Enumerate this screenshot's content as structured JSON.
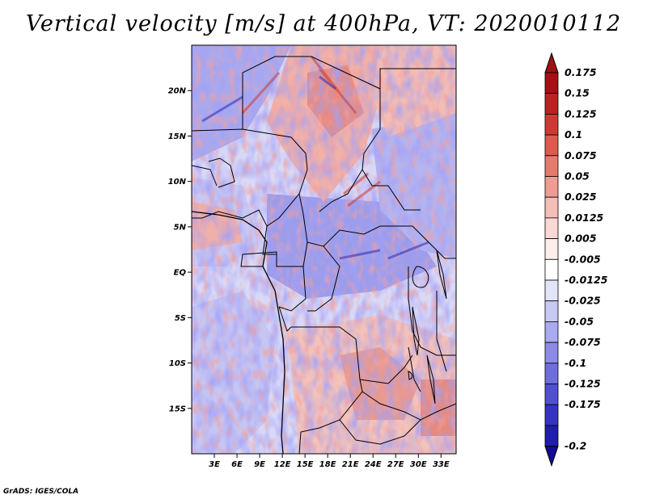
{
  "title": "Vertical velocity [m/s] at 400hPa, VT: 2020010112",
  "footer": "GrADS: IGES/COLA",
  "map": {
    "lon_range": [
      0,
      35
    ],
    "lat_range": [
      -20,
      25
    ],
    "lat_ticks": [
      {
        "value": 20,
        "label": "20N"
      },
      {
        "value": 15,
        "label": "15N"
      },
      {
        "value": 10,
        "label": "10N"
      },
      {
        "value": 5,
        "label": "5N"
      },
      {
        "value": 0,
        "label": "EQ"
      },
      {
        "value": -5,
        "label": "5S"
      },
      {
        "value": -10,
        "label": "10S"
      },
      {
        "value": -15,
        "label": "15S"
      }
    ],
    "lon_ticks": [
      {
        "value": 3,
        "label": "3E"
      },
      {
        "value": 6,
        "label": "6E"
      },
      {
        "value": 9,
        "label": "9E"
      },
      {
        "value": 12,
        "label": "12E"
      },
      {
        "value": 15,
        "label": "15E"
      },
      {
        "value": 18,
        "label": "18E"
      },
      {
        "value": 21,
        "label": "21E"
      },
      {
        "value": 24,
        "label": "24E"
      },
      {
        "value": 27,
        "label": "27E"
      },
      {
        "value": 30,
        "label": "30E"
      },
      {
        "value": 33,
        "label": "33E"
      }
    ]
  },
  "colorbar": {
    "levels": [
      {
        "label": "0.175",
        "color": "#a50f15"
      },
      {
        "label": "0.15",
        "color": "#bb2323"
      },
      {
        "label": "0.125",
        "color": "#cc3a34"
      },
      {
        "label": "0.1",
        "color": "#dc5a4e"
      },
      {
        "label": "0.075",
        "color": "#e57b6f"
      },
      {
        "label": "0.05",
        "color": "#ee9d93"
      },
      {
        "label": "0.025",
        "color": "#f5bdb6"
      },
      {
        "label": "0.0125",
        "color": "#fad8d3"
      },
      {
        "label": "0.005",
        "color": "#fdeeec"
      },
      {
        "label": "-0.005",
        "color": "#ffffff"
      },
      {
        "label": "-0.0125",
        "color": "#e4e4fb"
      },
      {
        "label": "-0.025",
        "color": "#c8c8f5"
      },
      {
        "label": "-0.05",
        "color": "#aaaaf0"
      },
      {
        "label": "-0.075",
        "color": "#8c8ce8"
      },
      {
        "label": "-0.1",
        "color": "#6e6ede"
      },
      {
        "label": "-0.125",
        "color": "#5050d0"
      },
      {
        "label": "-0.175",
        "color": "#3434bf"
      },
      {
        "label": "-0.2",
        "color": "#1e1eaa"
      }
    ],
    "top_color": "#a01010",
    "bottom_color": "#140a96"
  }
}
